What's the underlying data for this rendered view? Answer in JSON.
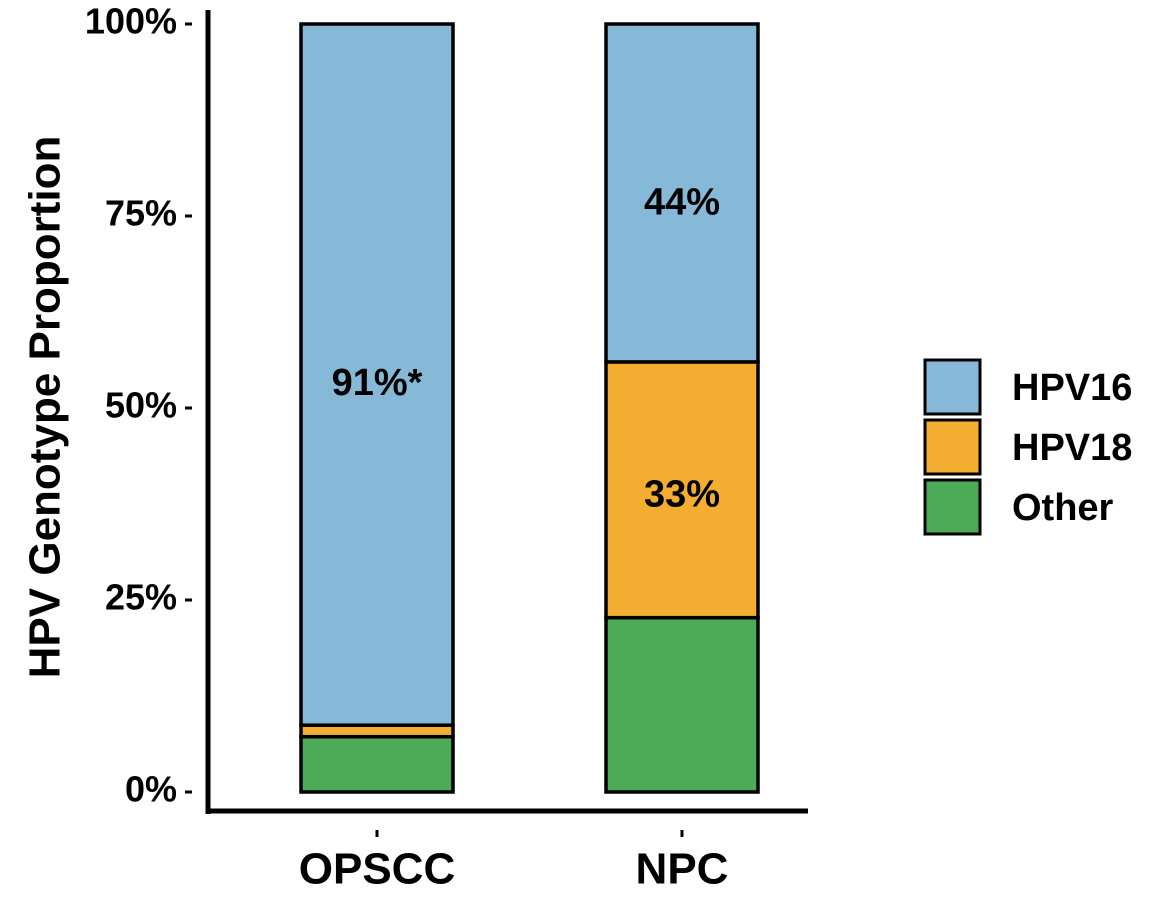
{
  "chart_data": {
    "type": "bar",
    "stacked": true,
    "categories": [
      "OPSCC",
      "NPC"
    ],
    "series": [
      {
        "name": "Other",
        "values": [
          0.072,
          0.227
        ],
        "color": "#4DAA57"
      },
      {
        "name": "HPV18",
        "values": [
          0.015,
          0.333
        ],
        "color": "#F3AE31"
      },
      {
        "name": "HPV16",
        "values": [
          0.913,
          0.44
        ],
        "color": "#86B9D7"
      }
    ],
    "bar_labels": [
      {
        "category": "OPSCC",
        "series": "HPV16",
        "text": "91%*",
        "y": 0.53
      },
      {
        "category": "NPC",
        "series": "HPV16",
        "text": "44%",
        "y": 0.765
      },
      {
        "category": "NPC",
        "series": "HPV18",
        "text": "33%",
        "y": 0.385
      }
    ],
    "ylabel": "HPV Genotype Proportion",
    "xlabel": "",
    "ylim": [
      0,
      1
    ],
    "y_ticks": [
      {
        "value": 0,
        "label": "0%"
      },
      {
        "value": 0.25,
        "label": "25%"
      },
      {
        "value": 0.5,
        "label": "50%"
      },
      {
        "value": 0.75,
        "label": "75%"
      },
      {
        "value": 1,
        "label": "100%"
      }
    ],
    "legend": {
      "position": "right",
      "entries": [
        "HPV16",
        "HPV18",
        "Other"
      ]
    },
    "grid": false
  }
}
